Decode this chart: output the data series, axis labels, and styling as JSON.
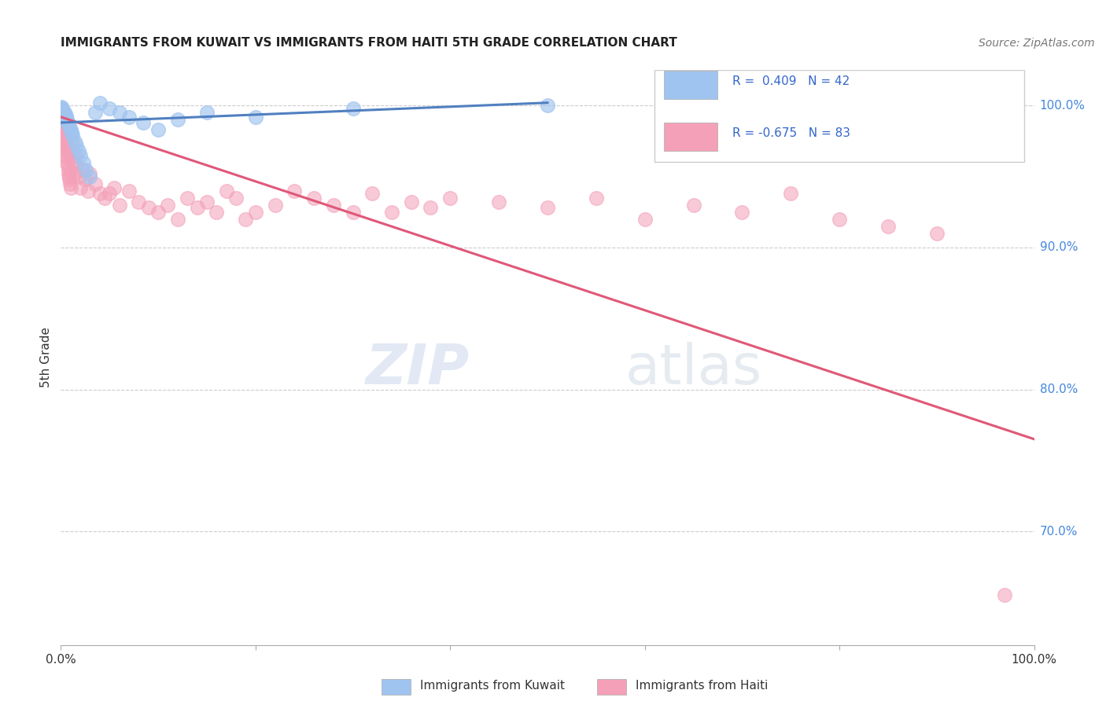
{
  "title": "IMMIGRANTS FROM KUWAIT VS IMMIGRANTS FROM HAITI 5TH GRADE CORRELATION CHART",
  "source": "Source: ZipAtlas.com",
  "ylabel": "5th Grade",
  "watermark_zip": "ZIP",
  "watermark_atlas": "atlas",
  "legend_kuwait": "Immigrants from Kuwait",
  "legend_haiti": "Immigrants from Haiti",
  "r_kuwait": 0.409,
  "n_kuwait": 42,
  "r_haiti": -0.675,
  "n_haiti": 83,
  "color_kuwait": "#a0c4f0",
  "color_haiti": "#f4a0b8",
  "trendline_kuwait": "#5080c0",
  "trendline_haiti": "#e05878",
  "xlim": [
    0.0,
    100.0
  ],
  "ylim": [
    62.0,
    102.5
  ],
  "y_ticks_right": [
    70.0,
    80.0,
    90.0,
    100.0
  ],
  "y_tick_labels_right": [
    "70.0%",
    "80.0%",
    "90.0%",
    "100.0%"
  ],
  "kuwait_x": [
    0.05,
    0.08,
    0.1,
    0.12,
    0.15,
    0.18,
    0.2,
    0.22,
    0.25,
    0.28,
    0.3,
    0.35,
    0.4,
    0.45,
    0.5,
    0.55,
    0.6,
    0.7,
    0.8,
    0.9,
    1.0,
    1.1,
    1.2,
    1.4,
    1.6,
    1.8,
    2.0,
    2.3,
    2.6,
    3.0,
    3.5,
    4.0,
    5.0,
    6.0,
    7.0,
    8.5,
    10.0,
    12.0,
    15.0,
    20.0,
    30.0,
    50.0
  ],
  "kuwait_y": [
    99.8,
    99.9,
    99.7,
    99.8,
    99.6,
    99.5,
    99.7,
    99.6,
    99.5,
    99.4,
    99.3,
    99.5,
    99.4,
    99.2,
    99.3,
    99.1,
    99.0,
    98.8,
    98.7,
    98.5,
    98.3,
    98.1,
    97.9,
    97.5,
    97.2,
    96.8,
    96.5,
    96.0,
    95.5,
    95.0,
    99.5,
    100.2,
    99.8,
    99.5,
    99.2,
    98.8,
    98.3,
    99.0,
    99.5,
    99.2,
    99.8,
    100.0
  ],
  "haiti_x": [
    0.05,
    0.08,
    0.1,
    0.12,
    0.14,
    0.16,
    0.18,
    0.2,
    0.22,
    0.25,
    0.28,
    0.3,
    0.32,
    0.35,
    0.38,
    0.4,
    0.42,
    0.45,
    0.48,
    0.5,
    0.55,
    0.6,
    0.65,
    0.7,
    0.75,
    0.8,
    0.85,
    0.9,
    0.95,
    1.0,
    1.1,
    1.2,
    1.3,
    1.4,
    1.5,
    1.6,
    1.8,
    2.0,
    2.2,
    2.5,
    2.8,
    3.0,
    3.5,
    4.0,
    4.5,
    5.0,
    5.5,
    6.0,
    7.0,
    8.0,
    9.0,
    10.0,
    11.0,
    12.0,
    13.0,
    14.0,
    15.0,
    16.0,
    17.0,
    18.0,
    19.0,
    20.0,
    22.0,
    24.0,
    26.0,
    28.0,
    30.0,
    32.0,
    34.0,
    36.0,
    38.0,
    40.0,
    45.0,
    50.0,
    55.0,
    60.0,
    65.0,
    70.0,
    75.0,
    80.0,
    85.0,
    90.0,
    97.0
  ],
  "haiti_y": [
    99.5,
    99.4,
    99.3,
    99.2,
    99.0,
    98.9,
    98.8,
    98.7,
    98.6,
    98.5,
    98.4,
    98.3,
    98.1,
    97.9,
    97.7,
    97.5,
    97.3,
    97.1,
    96.9,
    96.8,
    96.5,
    96.3,
    96.0,
    95.8,
    95.5,
    95.2,
    95.0,
    94.8,
    94.5,
    94.2,
    97.5,
    96.8,
    96.0,
    95.2,
    96.5,
    95.8,
    95.0,
    94.2,
    95.5,
    94.8,
    94.0,
    95.2,
    94.5,
    93.8,
    93.5,
    93.8,
    94.2,
    93.0,
    94.0,
    93.2,
    92.8,
    92.5,
    93.0,
    92.0,
    93.5,
    92.8,
    93.2,
    92.5,
    94.0,
    93.5,
    92.0,
    92.5,
    93.0,
    94.0,
    93.5,
    93.0,
    92.5,
    93.8,
    92.5,
    93.2,
    92.8,
    93.5,
    93.2,
    92.8,
    93.5,
    92.0,
    93.0,
    92.5,
    93.8,
    92.0,
    91.5,
    91.0,
    65.5
  ],
  "haiti_trend_x": [
    0.0,
    100.0
  ],
  "haiti_trend_y": [
    99.2,
    76.5
  ],
  "kuwait_trend_x": [
    0.0,
    50.0
  ],
  "kuwait_trend_y": [
    98.8,
    100.2
  ]
}
